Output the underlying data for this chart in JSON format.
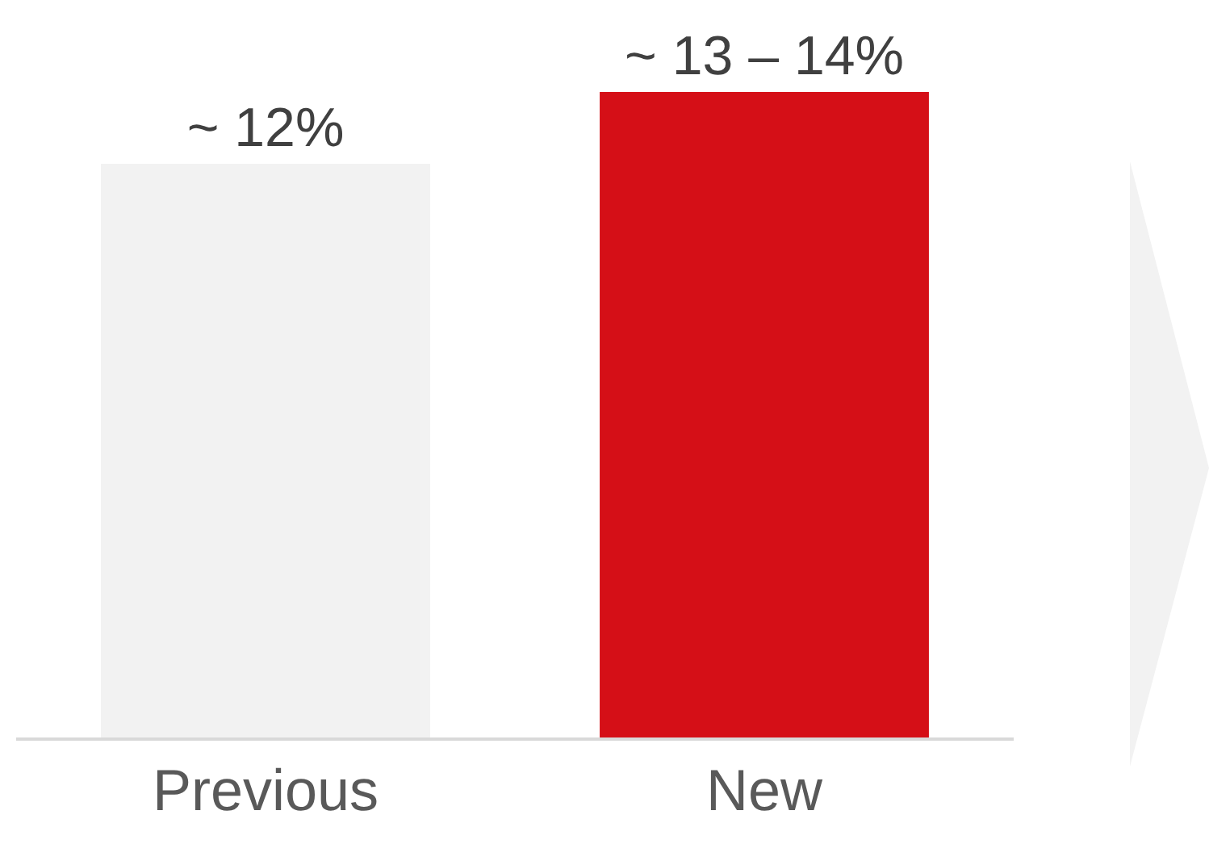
{
  "chart_data": {
    "type": "bar",
    "categories": [
      "Previous",
      "New"
    ],
    "values": [
      12,
      13.5
    ],
    "colors": [
      "#f2f2f2",
      "#d50f17"
    ],
    "value_labels": [
      "~ 12%",
      "~ 13 – 14%"
    ],
    "legend": false
  }
}
